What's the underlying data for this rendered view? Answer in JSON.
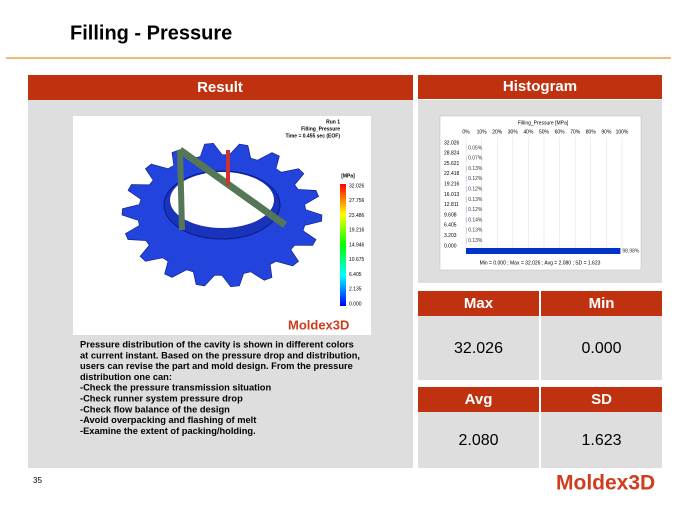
{
  "header": {
    "title": "Filling  - Pressure"
  },
  "result": {
    "heading": "Result",
    "image": {
      "run": "Run 1",
      "variable": "Filling_Pressure",
      "time": "Time = 0.455 sec (EOF)",
      "unit": "[MPa]",
      "scale": [
        "32.026",
        "27.756",
        "23.486",
        "19.216",
        "14.946",
        "10.675",
        "6.405",
        "2.135",
        "0.000"
      ],
      "logo": "Moldex3D"
    },
    "description": [
      "Pressure distribution of the cavity is shown in different colors",
      "at current instant. Based on the pressure drop and distribution,",
      "users can revise the part and mold design. From the pressure",
      "distribution one can:",
      "-Check the pressure transmission situation",
      "-Check runner system pressure drop",
      "-Check flow balance of the design",
      "-Avoid  overpacking and flashing of melt",
      "-Examine the extent of packing/holding."
    ]
  },
  "histogram": {
    "heading": "Histogram",
    "title": "Filling_Pressure [MPa]",
    "xlim": [
      0,
      100
    ],
    "xticks": [
      {
        "value": 0,
        "label": "0%"
      },
      {
        "value": 10,
        "label": "10%"
      },
      {
        "value": 20,
        "label": "20%"
      },
      {
        "value": 30,
        "label": "30%"
      },
      {
        "value": 40,
        "label": "40%"
      },
      {
        "value": 50,
        "label": "50%"
      },
      {
        "value": 60,
        "label": "60%"
      },
      {
        "value": 70,
        "label": "70%"
      },
      {
        "value": 80,
        "label": "80%"
      },
      {
        "value": 90,
        "label": "90%"
      },
      {
        "value": 100,
        "label": "100%"
      }
    ],
    "categories": [
      "32.026",
      "28.824",
      "25.621",
      "22.418",
      "19.216",
      "16.013",
      "12.811",
      "9.608",
      "6.405",
      "3.203",
      "0.000"
    ],
    "values": [
      0.05,
      0.07,
      0.13,
      0.12,
      0.12,
      0.13,
      0.12,
      0.14,
      0.13,
      0.13,
      98.98
    ],
    "value_labels": [
      "0.05%",
      "0.07%",
      "0.13%",
      "0.12%",
      "0.12%",
      "0.13%",
      "0.12%",
      "0.14%",
      "0.13%",
      "0.13%",
      "98.98%"
    ],
    "color": "#0033cc",
    "footer": "Min = 0.000 ;  Max = 32.026 ;  Avg = 2.080 ;  SD = 1.623"
  },
  "stats": [
    {
      "label": "Max",
      "value": "32.026"
    },
    {
      "label": "Min",
      "value": "0.000"
    },
    {
      "label": "Avg",
      "value": "2.080"
    },
    {
      "label": "SD",
      "value": "1.623"
    }
  ],
  "footer": {
    "page": "35",
    "logo": "Moldex3D"
  }
}
